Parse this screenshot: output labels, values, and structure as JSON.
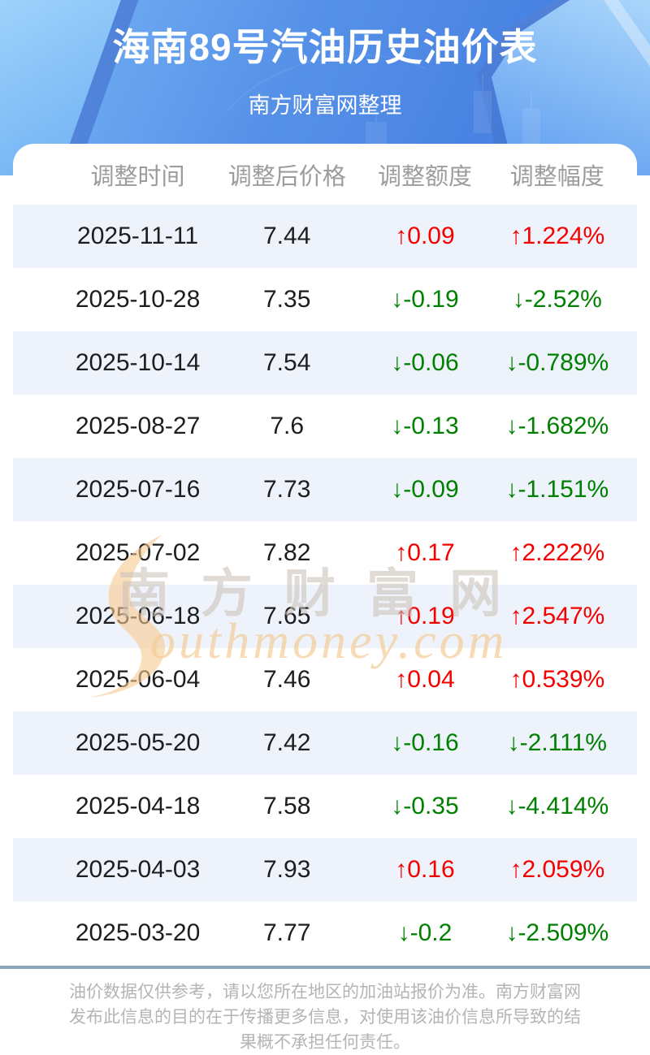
{
  "page": {
    "header": {
      "title": "海南89号汽油历史油价表",
      "subtitle": "南方财富网整理"
    },
    "watermark": {
      "cn": "南方财富网",
      "en": "outhmoney.com"
    },
    "table": {
      "columns": [
        "调整时间",
        "调整后价格",
        "调整额度",
        "调整幅度"
      ],
      "rows": [
        {
          "date": "2025-11-11",
          "price": "7.44",
          "change": "↑0.09",
          "percent": "↑1.224%",
          "direction": "up"
        },
        {
          "date": "2025-10-28",
          "price": "7.35",
          "change": "↓-0.19",
          "percent": "↓-2.52%",
          "direction": "down"
        },
        {
          "date": "2025-10-14",
          "price": "7.54",
          "change": "↓-0.06",
          "percent": "↓-0.789%",
          "direction": "down"
        },
        {
          "date": "2025-08-27",
          "price": "7.6",
          "change": "↓-0.13",
          "percent": "↓-1.682%",
          "direction": "down"
        },
        {
          "date": "2025-07-16",
          "price": "7.73",
          "change": "↓-0.09",
          "percent": "↓-1.151%",
          "direction": "down"
        },
        {
          "date": "2025-07-02",
          "price": "7.82",
          "change": "↑0.17",
          "percent": "↑2.222%",
          "direction": "up"
        },
        {
          "date": "2025-06-18",
          "price": "7.65",
          "change": "↑0.19",
          "percent": "↑2.547%",
          "direction": "up"
        },
        {
          "date": "2025-06-04",
          "price": "7.46",
          "change": "↑0.04",
          "percent": "↑0.539%",
          "direction": "up"
        },
        {
          "date": "2025-05-20",
          "price": "7.42",
          "change": "↓-0.16",
          "percent": "↓-2.111%",
          "direction": "down"
        },
        {
          "date": "2025-04-18",
          "price": "7.58",
          "change": "↓-0.35",
          "percent": "↓-4.414%",
          "direction": "down"
        },
        {
          "date": "2025-04-03",
          "price": "7.93",
          "change": "↑0.16",
          "percent": "↑2.059%",
          "direction": "up"
        },
        {
          "date": "2025-03-20",
          "price": "7.77",
          "change": "↓-0.2",
          "percent": "↓-2.509%",
          "direction": "down"
        }
      ]
    },
    "footer": {
      "lines": [
        "油价数据仅供参考，请以您所在地区的加油站报价为准。南方财富网",
        "发布此信息的目的在于传播更多信息，对使用该油价信息所导致的结",
        "果概不承担任何责任。"
      ]
    },
    "colors": {
      "up": "#f50000",
      "down": "#008000",
      "stripe": "#eef3fb",
      "header_blue": "#4b84e3",
      "divider": "#8ca4bc"
    }
  },
  "chart_data": {
    "type": "table",
    "title": "海南89号汽油历史油价表",
    "columns": [
      "调整时间",
      "调整后价格",
      "调整额度",
      "调整幅度"
    ],
    "rows": [
      [
        "2025-11-11",
        7.44,
        0.09,
        1.224
      ],
      [
        "2025-10-28",
        7.35,
        -0.19,
        -2.52
      ],
      [
        "2025-10-14",
        7.54,
        -0.06,
        -0.789
      ],
      [
        "2025-08-27",
        7.6,
        -0.13,
        -1.682
      ],
      [
        "2025-07-16",
        7.73,
        -0.09,
        -1.151
      ],
      [
        "2025-07-02",
        7.82,
        0.17,
        2.222
      ],
      [
        "2025-06-18",
        7.65,
        0.19,
        2.547
      ],
      [
        "2025-06-04",
        7.46,
        0.04,
        0.539
      ],
      [
        "2025-05-20",
        7.42,
        -0.16,
        -2.111
      ],
      [
        "2025-04-18",
        7.58,
        -0.35,
        -4.414
      ],
      [
        "2025-04-03",
        7.93,
        0.16,
        2.059
      ],
      [
        "2025-03-20",
        7.77,
        -0.2,
        -2.509
      ]
    ]
  }
}
